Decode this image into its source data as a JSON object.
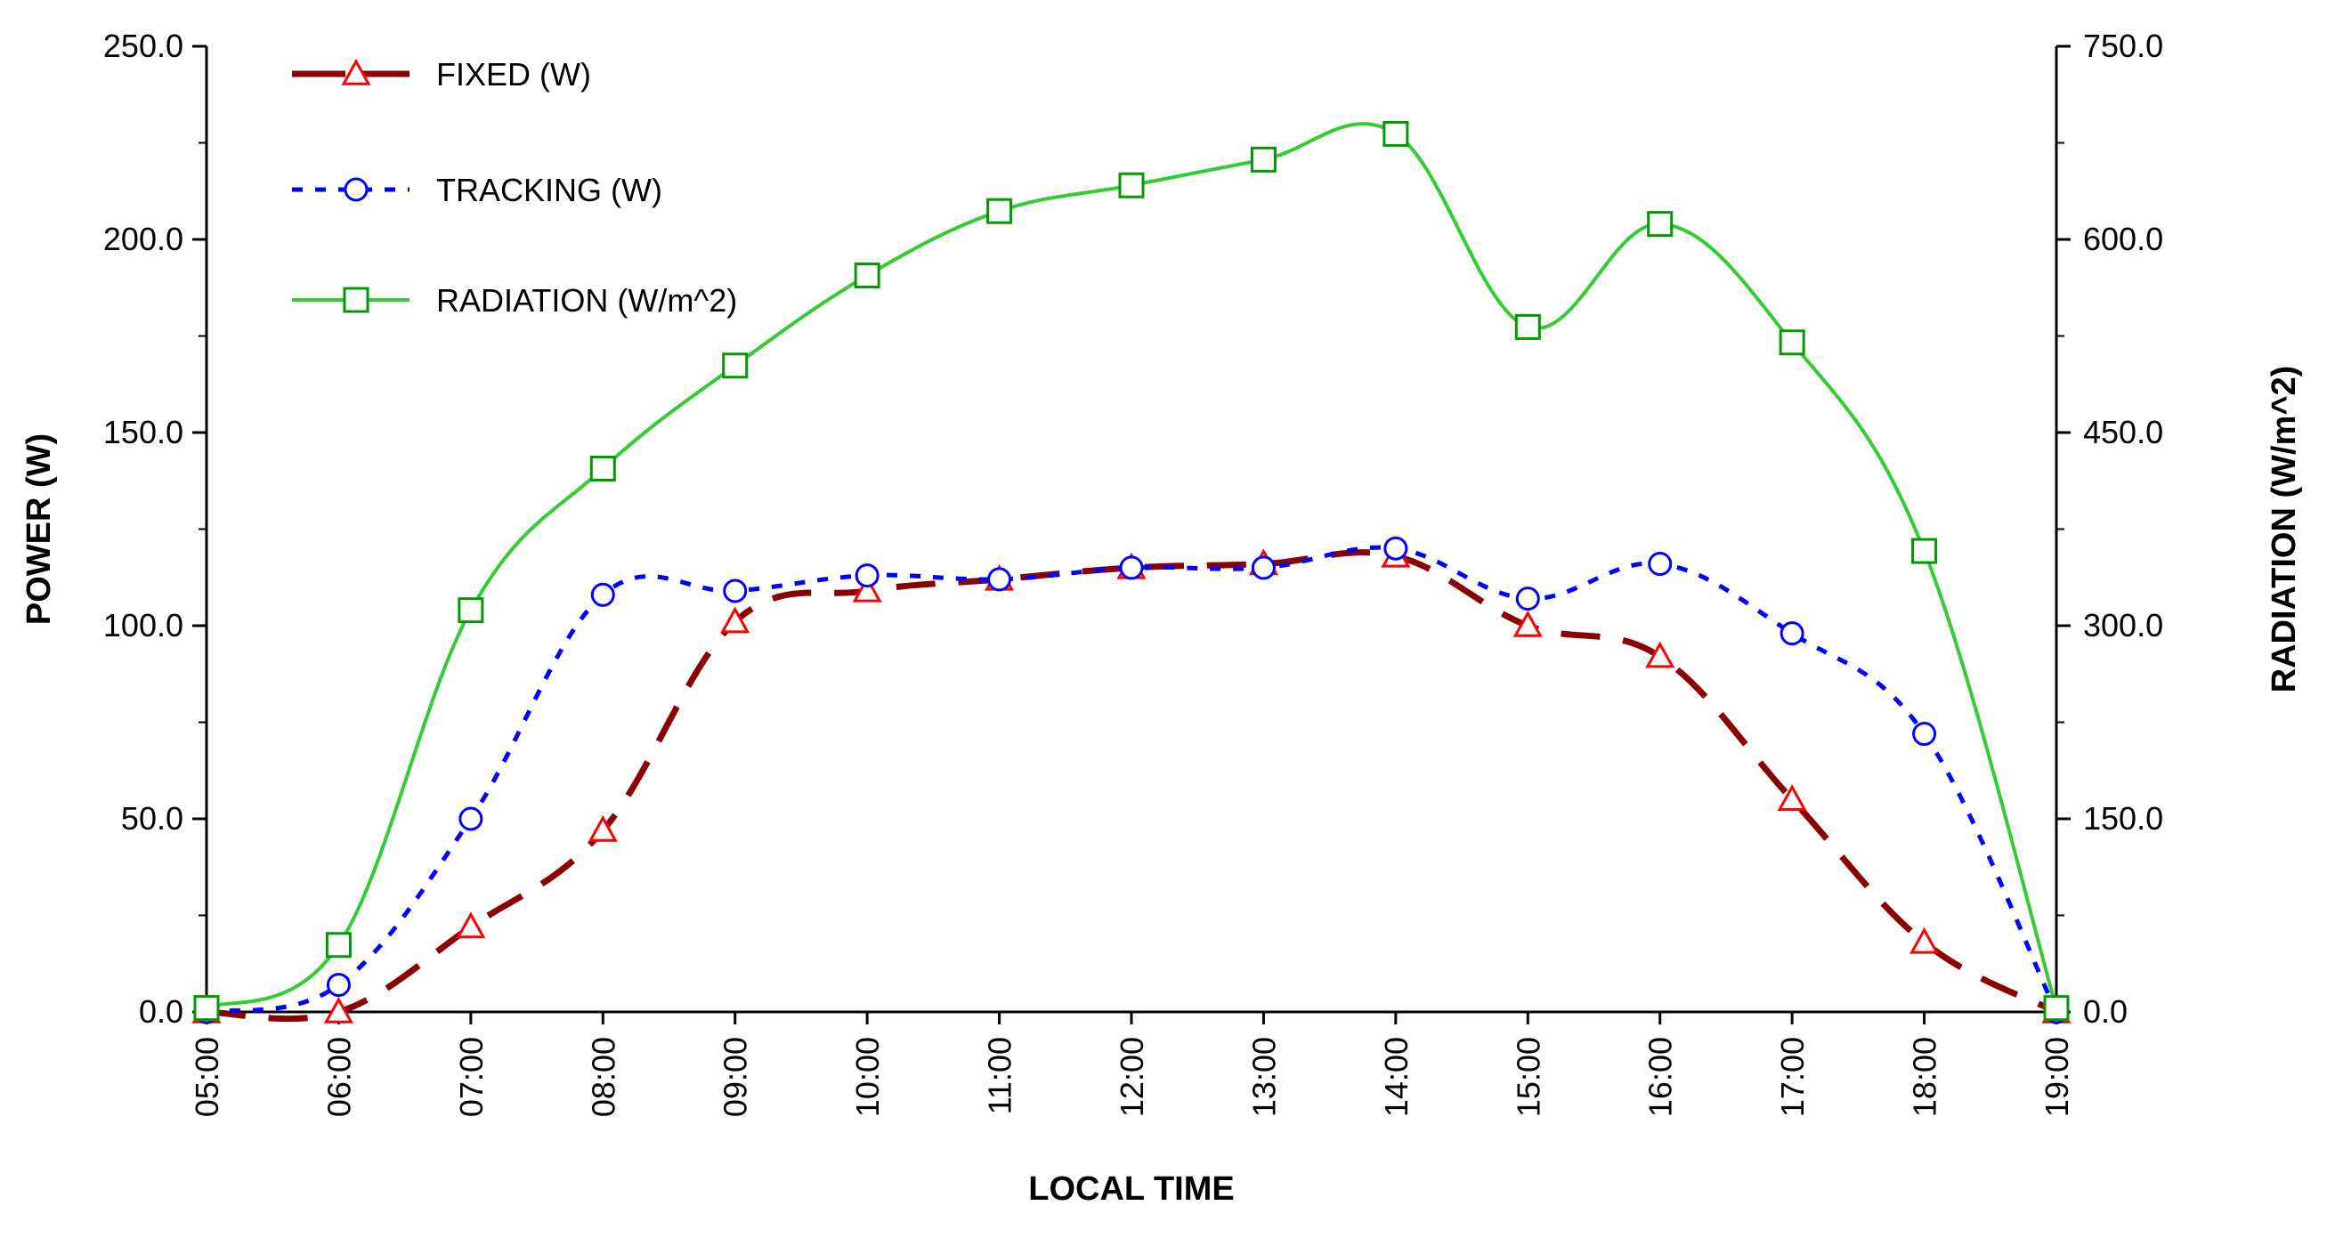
{
  "chart_data": {
    "type": "line",
    "categories": [
      "05:00",
      "06:00",
      "07:00",
      "08:00",
      "09:00",
      "10:00",
      "11:00",
      "12:00",
      "13:00",
      "14:00",
      "15:00",
      "16:00",
      "17:00",
      "18:00",
      "19:00"
    ],
    "xlabel": "LOCAL TIME",
    "ylabel": "POWER (W)",
    "ylabel_right": "RADIATION (W/m^2)",
    "ylim": [
      0,
      250
    ],
    "ylim_right": [
      0,
      750
    ],
    "yticks": [
      "0.0",
      "50.0",
      "100.0",
      "150.0",
      "200.0",
      "250.0"
    ],
    "yticks_right": [
      "0.0",
      "150.0",
      "300.0",
      "450.0",
      "600.0",
      "750.0"
    ],
    "legend_position": "top-left",
    "series": [
      {
        "name": "FIXED (W)",
        "axis": "left",
        "color": "#8b0000",
        "marker": "triangle",
        "marker_color": "#ff0000",
        "line_style": "long-dash",
        "values": [
          0,
          0,
          22,
          47,
          101,
          109,
          112,
          115,
          116,
          118,
          100,
          92,
          55,
          18,
          0
        ]
      },
      {
        "name": "TRACKING (W)",
        "axis": "left",
        "color": "#0000ff",
        "marker": "circle",
        "marker_color": "#0000ff",
        "line_style": "dotted",
        "values": [
          0,
          7,
          50,
          108,
          109,
          113,
          112,
          115,
          115,
          120,
          107,
          116,
          98,
          72,
          0
        ]
      },
      {
        "name": "RADIATION (W/m^2)",
        "axis": "right",
        "color": "#33cc33",
        "marker": "square",
        "marker_color": "#009900",
        "line_style": "solid",
        "values": [
          3,
          52,
          312,
          422,
          502,
          572,
          622,
          642,
          662,
          682,
          532,
          612,
          520,
          358,
          3
        ]
      }
    ]
  }
}
